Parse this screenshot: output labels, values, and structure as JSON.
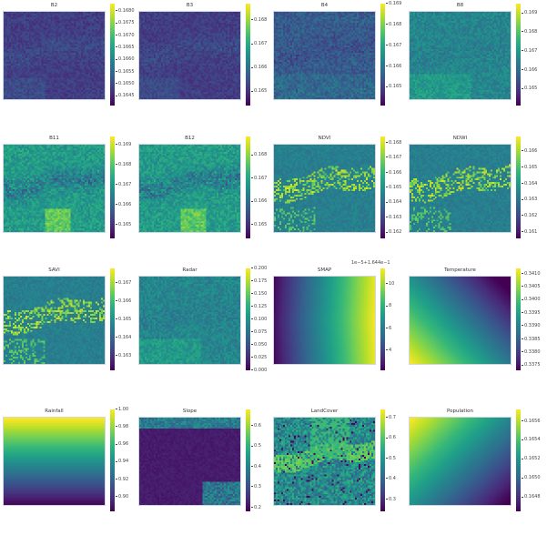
{
  "figure": {
    "layout": "4x4 grid of image panels with viridis colorbars",
    "colormap": "viridis",
    "colormap_stops": [
      "#440154",
      "#482878",
      "#3e4a89",
      "#31688e",
      "#26828e",
      "#1f9e89",
      "#35b779",
      "#6ece58",
      "#b5de2b",
      "#fde725"
    ]
  },
  "chart_data": [
    {
      "type": "heatmap",
      "title": "B2",
      "pattern": "texture-dark",
      "colorbar": {
        "ticks": [
          "0.1645",
          "0.1650",
          "0.1655",
          "0.1660",
          "0.1665",
          "0.1670",
          "0.1675",
          "0.1680"
        ],
        "range": [
          0.1641,
          0.1683
        ]
      }
    },
    {
      "type": "heatmap",
      "title": "B3",
      "pattern": "texture-dark",
      "colorbar": {
        "ticks": [
          "0.165",
          "0.166",
          "0.167",
          "0.168"
        ],
        "range": [
          0.1644,
          0.1687
        ]
      }
    },
    {
      "type": "heatmap",
      "title": "B4",
      "pattern": "texture-mid",
      "colorbar": {
        "ticks": [
          "0.165",
          "0.166",
          "0.167",
          "0.168",
          "0.169"
        ],
        "range": [
          0.1641,
          0.169
        ]
      }
    },
    {
      "type": "heatmap",
      "title": "B8",
      "pattern": "texture-teal",
      "colorbar": {
        "ticks": [
          "0.165",
          "0.166",
          "0.167",
          "0.168",
          "0.169"
        ],
        "range": [
          0.1641,
          0.1695
        ]
      }
    },
    {
      "type": "heatmap",
      "title": "B11",
      "pattern": "texture-green",
      "colorbar": {
        "ticks": [
          "0.165",
          "0.166",
          "0.167",
          "0.168",
          "0.169"
        ],
        "range": [
          0.1643,
          0.1694
        ]
      }
    },
    {
      "type": "heatmap",
      "title": "B12",
      "pattern": "texture-green",
      "colorbar": {
        "ticks": [
          "0.165",
          "0.166",
          "0.167",
          "0.168"
        ],
        "range": [
          0.1644,
          0.1688
        ]
      }
    },
    {
      "type": "heatmap",
      "title": "NDVI",
      "pattern": "veg",
      "colorbar": {
        "ticks": [
          "0.162",
          "0.163",
          "0.164",
          "0.165",
          "0.166",
          "0.167",
          "0.168"
        ],
        "range": [
          0.1616,
          0.1684
        ]
      }
    },
    {
      "type": "heatmap",
      "title": "NDWI",
      "pattern": "veg",
      "colorbar": {
        "ticks": [
          "0.161",
          "0.162",
          "0.163",
          "0.164",
          "0.165",
          "0.166"
        ],
        "range": [
          0.1606,
          0.1669
        ]
      }
    },
    {
      "type": "heatmap",
      "title": "SAVI",
      "pattern": "veg",
      "colorbar": {
        "ticks": [
          "0.163",
          "0.164",
          "0.165",
          "0.166",
          "0.167"
        ],
        "range": [
          0.1622,
          0.1678
        ]
      }
    },
    {
      "type": "heatmap",
      "title": "Radar",
      "pattern": "texture-teal",
      "colorbar": {
        "ticks": [
          "0.000",
          "0.025",
          "0.050",
          "0.075",
          "0.100",
          "0.125",
          "0.150",
          "0.175",
          "0.200"
        ],
        "range": [
          0.0,
          0.2
        ]
      }
    },
    {
      "type": "heatmap",
      "title": "SMAP",
      "pattern": "gradient-left-right",
      "colorbar": {
        "ticks": [
          "4",
          "6",
          "8",
          "10"
        ],
        "range": [
          2.2,
          11.4
        ],
        "offset_text": "1e−5+1.644e−1"
      }
    },
    {
      "type": "heatmap",
      "title": "Temperature",
      "pattern": "gradient-bl-tr",
      "colorbar": {
        "ticks": [
          "0.3375",
          "0.3380",
          "0.3385",
          "0.3390",
          "0.3395",
          "0.3400",
          "0.3405",
          "0.3410"
        ],
        "range": [
          0.3373,
          0.3412
        ]
      }
    },
    {
      "type": "heatmap",
      "title": "Rainfall",
      "pattern": "gradient-bottom-top",
      "colorbar": {
        "ticks": [
          "0.90",
          "0.92",
          "0.94",
          "0.96",
          "0.98",
          "1.00"
        ],
        "range": [
          0.883,
          1.0
        ]
      }
    },
    {
      "type": "heatmap",
      "title": "Slope",
      "pattern": "slope",
      "colorbar": {
        "ticks": [
          "0.2",
          "0.3",
          "0.4",
          "0.5",
          "0.6"
        ],
        "range": [
          0.18,
          0.68
        ]
      }
    },
    {
      "type": "heatmap",
      "title": "LandCover",
      "pattern": "landcover",
      "colorbar": {
        "ticks": [
          "0.3",
          "0.4",
          "0.5",
          "0.6",
          "0.7"
        ],
        "range": [
          0.24,
          0.74
        ]
      }
    },
    {
      "type": "heatmap",
      "title": "Population",
      "pattern": "gradient-tl-br",
      "colorbar": {
        "ticks": [
          "0.1648",
          "0.1650",
          "0.1652",
          "0.1654",
          "0.1656"
        ],
        "range": [
          0.16465,
          0.16572
        ]
      }
    }
  ]
}
